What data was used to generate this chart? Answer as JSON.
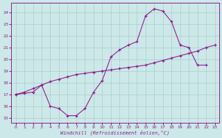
{
  "xlabel": "Windchill (Refroidissement éolien,°C)",
  "xlim": [
    -0.5,
    23.5
  ],
  "ylim": [
    14.6,
    24.8
  ],
  "xticks": [
    0,
    1,
    2,
    3,
    4,
    5,
    6,
    7,
    8,
    9,
    10,
    11,
    12,
    13,
    14,
    15,
    16,
    17,
    18,
    19,
    20,
    21,
    22,
    23
  ],
  "yticks": [
    15,
    16,
    17,
    18,
    19,
    20,
    21,
    22,
    23,
    24
  ],
  "line_color": "#8b1a8b",
  "bg_color": "#cce8e8",
  "grid_color": "#aacccc",
  "curve1_x": [
    0,
    1,
    2,
    3,
    4,
    5,
    6,
    7,
    8,
    9,
    10,
    11,
    12,
    13,
    14,
    15,
    16,
    17,
    18,
    19,
    20,
    21,
    22
  ],
  "curve1_y": [
    17.0,
    17.2,
    17.5,
    17.8,
    16.0,
    15.8,
    15.2,
    15.2,
    15.8,
    17.2,
    18.2,
    20.2,
    20.8,
    21.2,
    21.5,
    23.7,
    24.3,
    24.1,
    23.2,
    21.2,
    21.0,
    19.5,
    19.5
  ],
  "curve2_x": [
    0,
    1,
    2,
    3,
    4,
    5,
    6,
    7,
    8,
    9,
    10,
    11,
    12,
    13,
    14,
    15,
    16,
    17,
    18,
    19,
    20,
    21,
    22,
    23
  ],
  "curve2_y": [
    17.0,
    17.1,
    17.2,
    17.8,
    18.1,
    18.3,
    18.5,
    18.7,
    18.8,
    18.9,
    19.0,
    19.1,
    19.2,
    19.3,
    19.4,
    19.5,
    19.7,
    19.9,
    20.1,
    20.3,
    20.5,
    20.7,
    21.0,
    21.2
  ]
}
